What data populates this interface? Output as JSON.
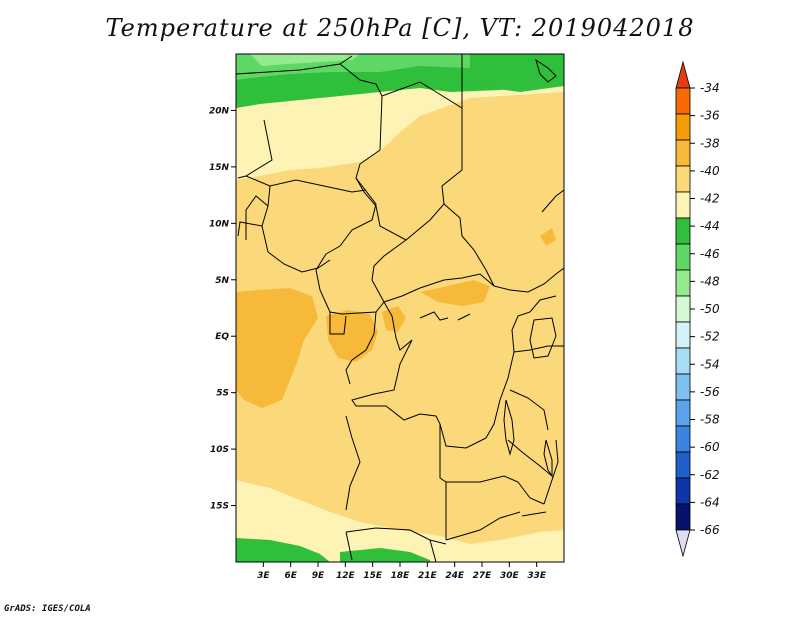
{
  "title": "Temperature at 250hPa [C], VT: 2019042018",
  "credit": "GrADS: IGES/COLA",
  "map": {
    "lon_range": [
      0,
      36
    ],
    "lat_range": [
      -20,
      25
    ],
    "x_ticks": [
      {
        "value": 3,
        "label": "3E"
      },
      {
        "value": 6,
        "label": "6E"
      },
      {
        "value": 9,
        "label": "9E"
      },
      {
        "value": 12,
        "label": "12E"
      },
      {
        "value": 15,
        "label": "15E"
      },
      {
        "value": 18,
        "label": "18E"
      },
      {
        "value": 21,
        "label": "21E"
      },
      {
        "value": 24,
        "label": "24E"
      },
      {
        "value": 27,
        "label": "27E"
      },
      {
        "value": 30,
        "label": "30E"
      },
      {
        "value": 33,
        "label": "33E"
      }
    ],
    "y_ticks": [
      {
        "value": 20,
        "label": "20N"
      },
      {
        "value": 15,
        "label": "15N"
      },
      {
        "value": 10,
        "label": "10N"
      },
      {
        "value": 5,
        "label": "5N"
      },
      {
        "value": 0,
        "label": "EQ"
      },
      {
        "value": -5,
        "label": "5S"
      },
      {
        "value": -10,
        "label": "10S"
      },
      {
        "value": -15,
        "label": "15S"
      }
    ]
  },
  "colorbar": {
    "levels": [
      "-34",
      "-36",
      "-38",
      "-40",
      "-42",
      "-44",
      "-46",
      "-48",
      "-50",
      "-52",
      "-54",
      "-56",
      "-58",
      "-60",
      "-62",
      "-64",
      "-66"
    ],
    "colors": [
      "#e63c14",
      "#f56a04",
      "#f59a08",
      "#f7b93a",
      "#fbd97a",
      "#fdf3b5",
      "#2fbf3a",
      "#5fd764",
      "#95ea8e",
      "#d6f8d2",
      "#d3f4f7",
      "#a8dcf5",
      "#7ec0ef",
      "#5aa3ea",
      "#3b84df",
      "#1f5fc9",
      "#0e36a8",
      "#07126c",
      "#ddddf5"
    ]
  },
  "field_colors": {
    "c40": "#fbd97a",
    "c38": "#f7b93a",
    "c42": "#fdf3b5",
    "c44": "#2fbf3a",
    "c46": "#5fd764",
    "c48": "#95ea8e"
  }
}
